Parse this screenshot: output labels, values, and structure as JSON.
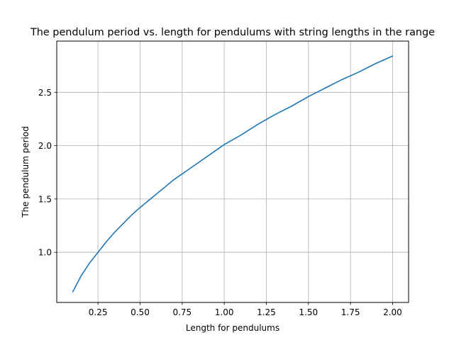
{
  "chart_data": {
    "type": "line",
    "title": "The pendulum period vs. length for pendulums with string lengths in the range",
    "xlabel": "Length for pendulums",
    "ylabel": "The pendulum period",
    "xlim": [
      0.005,
      2.095
    ],
    "ylim": [
      0.53,
      2.98
    ],
    "xticks": [
      0.25,
      0.5,
      0.75,
      1.0,
      1.25,
      1.5,
      1.75,
      2.0
    ],
    "xtick_labels": [
      "0.25",
      "0.50",
      "0.75",
      "1.00",
      "1.25",
      "1.50",
      "1.75",
      "2.00"
    ],
    "yticks": [
      1.0,
      1.5,
      2.0,
      2.5
    ],
    "ytick_labels": [
      "1.0",
      "1.5",
      "2.0",
      "2.5"
    ],
    "grid": true,
    "series": [
      {
        "color": "#1f77b4",
        "x": [
          0.1,
          0.15,
          0.2,
          0.25,
          0.3,
          0.35,
          0.4,
          0.45,
          0.5,
          0.6,
          0.7,
          0.8,
          0.9,
          1.0,
          1.1,
          1.2,
          1.3,
          1.4,
          1.5,
          1.6,
          1.7,
          1.8,
          1.9,
          2.0
        ],
        "y": [
          0.63,
          0.78,
          0.9,
          1.0,
          1.1,
          1.19,
          1.27,
          1.35,
          1.42,
          1.55,
          1.68,
          1.79,
          1.9,
          2.01,
          2.1,
          2.2,
          2.29,
          2.37,
          2.46,
          2.54,
          2.62,
          2.69,
          2.77,
          2.84
        ]
      }
    ]
  }
}
